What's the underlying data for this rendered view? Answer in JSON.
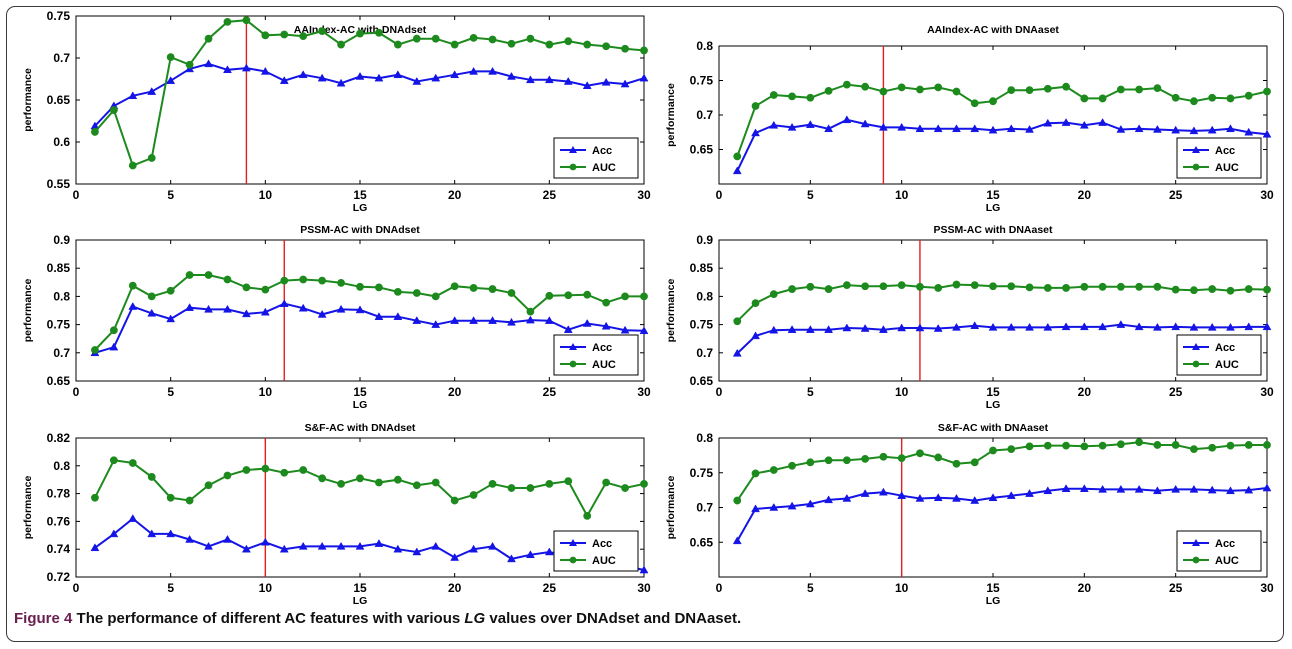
{
  "figure": {
    "caption_label": "Figure 4",
    "caption_pre": "The performance of different AC features with various ",
    "caption_lg": "LG",
    "caption_post": " values over DNAdset and DNAaset."
  },
  "colors": {
    "acc": "#1414e6",
    "auc": "#1d8a1d",
    "marker_line": "#e02020"
  },
  "chart_data": [
    {
      "type": "line",
      "title": "AAIndex-AC with DNAdset",
      "xlabel": "LG",
      "ylabel": "performance",
      "xlim": [
        0,
        30
      ],
      "ylim": [
        0.55,
        0.75
      ],
      "xticks": [
        0,
        5,
        10,
        15,
        20,
        25,
        30
      ],
      "yticks": [
        0.55,
        0.6,
        0.65,
        0.7,
        0.75
      ],
      "ytick_labels": [
        "0.55",
        "0.6",
        "0.65",
        "0.7",
        "0.75"
      ],
      "vline_x": 9,
      "legend_position": "bottom-right",
      "x": [
        1,
        2,
        3,
        4,
        5,
        6,
        7,
        8,
        9,
        10,
        11,
        12,
        13,
        14,
        15,
        16,
        17,
        18,
        19,
        20,
        21,
        22,
        23,
        24,
        25,
        26,
        27,
        28,
        29,
        30
      ],
      "series": [
        {
          "name": "Acc",
          "values": [
            0.619,
            0.643,
            0.655,
            0.66,
            0.673,
            0.687,
            0.693,
            0.686,
            0.688,
            0.684,
            0.673,
            0.68,
            0.676,
            0.67,
            0.678,
            0.676,
            0.68,
            0.672,
            0.676,
            0.68,
            0.684,
            0.684,
            0.678,
            0.674,
            0.674,
            0.672,
            0.667,
            0.671,
            0.669,
            0.676
          ]
        },
        {
          "name": "AUC",
          "values": [
            0.612,
            0.638,
            0.572,
            0.581,
            0.701,
            0.692,
            0.723,
            0.743,
            0.745,
            0.727,
            0.728,
            0.726,
            0.732,
            0.716,
            0.729,
            0.73,
            0.716,
            0.723,
            0.723,
            0.716,
            0.724,
            0.722,
            0.717,
            0.723,
            0.716,
            0.72,
            0.716,
            0.714,
            0.711,
            0.709
          ]
        }
      ]
    },
    {
      "type": "line",
      "title": "AAIndex-AC with DNAaset",
      "xlabel": "LG",
      "ylabel": "performance",
      "xlim": [
        0,
        30
      ],
      "ylim": [
        0.6,
        0.8
      ],
      "xticks": [
        0,
        5,
        10,
        15,
        20,
        25,
        30
      ],
      "yticks": [
        0.65,
        0.7,
        0.75,
        0.8
      ],
      "ytick_labels": [
        "0.65",
        "0.7",
        "0.75",
        "0.8"
      ],
      "vline_x": 9,
      "legend_position": "bottom-right",
      "x": [
        1,
        2,
        3,
        4,
        5,
        6,
        7,
        8,
        9,
        10,
        11,
        12,
        13,
        14,
        15,
        16,
        17,
        18,
        19,
        20,
        21,
        22,
        23,
        24,
        25,
        26,
        27,
        28,
        29,
        30
      ],
      "series": [
        {
          "name": "Acc",
          "values": [
            0.619,
            0.674,
            0.685,
            0.682,
            0.686,
            0.68,
            0.693,
            0.687,
            0.682,
            0.682,
            0.68,
            0.68,
            0.68,
            0.68,
            0.678,
            0.68,
            0.679,
            0.688,
            0.689,
            0.685,
            0.689,
            0.679,
            0.68,
            0.679,
            0.678,
            0.677,
            0.678,
            0.68,
            0.675,
            0.672
          ]
        },
        {
          "name": "AUC",
          "values": [
            0.64,
            0.713,
            0.729,
            0.727,
            0.725,
            0.735,
            0.744,
            0.741,
            0.734,
            0.74,
            0.737,
            0.74,
            0.734,
            0.717,
            0.72,
            0.736,
            0.736,
            0.738,
            0.741,
            0.724,
            0.724,
            0.737,
            0.737,
            0.739,
            0.725,
            0.72,
            0.725,
            0.724,
            0.728,
            0.734
          ]
        }
      ]
    },
    {
      "type": "line",
      "title": "PSSM-AC with DNAdset",
      "xlabel": "LG",
      "ylabel": "performance",
      "xlim": [
        0,
        30
      ],
      "ylim": [
        0.65,
        0.9
      ],
      "xticks": [
        0,
        5,
        10,
        15,
        20,
        25,
        30
      ],
      "yticks": [
        0.65,
        0.7,
        0.75,
        0.8,
        0.85,
        0.9
      ],
      "ytick_labels": [
        "0.65",
        "0.7",
        "0.75",
        "0.8",
        "0.85",
        "0.9"
      ],
      "vline_x": 11,
      "legend_position": "bottom-right",
      "x": [
        1,
        2,
        3,
        4,
        5,
        6,
        7,
        8,
        9,
        10,
        11,
        12,
        13,
        14,
        15,
        16,
        17,
        18,
        19,
        20,
        21,
        22,
        23,
        24,
        25,
        26,
        27,
        28,
        29,
        30
      ],
      "series": [
        {
          "name": "Acc",
          "values": [
            0.7,
            0.71,
            0.782,
            0.77,
            0.76,
            0.78,
            0.777,
            0.777,
            0.769,
            0.772,
            0.787,
            0.779,
            0.768,
            0.777,
            0.776,
            0.764,
            0.764,
            0.757,
            0.75,
            0.757,
            0.757,
            0.757,
            0.754,
            0.758,
            0.757,
            0.741,
            0.752,
            0.747,
            0.74,
            0.739
          ]
        },
        {
          "name": "AUC",
          "values": [
            0.705,
            0.74,
            0.819,
            0.8,
            0.81,
            0.838,
            0.838,
            0.83,
            0.816,
            0.812,
            0.828,
            0.83,
            0.828,
            0.824,
            0.817,
            0.816,
            0.808,
            0.806,
            0.8,
            0.818,
            0.815,
            0.813,
            0.806,
            0.773,
            0.801,
            0.802,
            0.803,
            0.789,
            0.8,
            0.8
          ]
        }
      ]
    },
    {
      "type": "line",
      "title": "PSSM-AC with DNAaset",
      "xlabel": "LG",
      "ylabel": "performance",
      "xlim": [
        0,
        30
      ],
      "ylim": [
        0.65,
        0.9
      ],
      "xticks": [
        0,
        5,
        10,
        15,
        20,
        25,
        30
      ],
      "yticks": [
        0.65,
        0.7,
        0.75,
        0.8,
        0.85,
        0.9
      ],
      "ytick_labels": [
        "0.65",
        "0.7",
        "0.75",
        "0.8",
        "0.85",
        "0.9"
      ],
      "vline_x": 11,
      "legend_position": "bottom-right",
      "x": [
        1,
        2,
        3,
        4,
        5,
        6,
        7,
        8,
        9,
        10,
        11,
        12,
        13,
        14,
        15,
        16,
        17,
        18,
        19,
        20,
        21,
        22,
        23,
        24,
        25,
        26,
        27,
        28,
        29,
        30
      ],
      "series": [
        {
          "name": "Acc",
          "values": [
            0.699,
            0.73,
            0.74,
            0.741,
            0.741,
            0.741,
            0.744,
            0.743,
            0.741,
            0.744,
            0.744,
            0.743,
            0.745,
            0.748,
            0.745,
            0.745,
            0.745,
            0.745,
            0.746,
            0.746,
            0.746,
            0.75,
            0.746,
            0.745,
            0.746,
            0.745,
            0.745,
            0.745,
            0.746,
            0.746
          ]
        },
        {
          "name": "AUC",
          "values": [
            0.756,
            0.788,
            0.804,
            0.813,
            0.817,
            0.813,
            0.82,
            0.818,
            0.818,
            0.82,
            0.817,
            0.815,
            0.821,
            0.82,
            0.818,
            0.818,
            0.816,
            0.815,
            0.815,
            0.817,
            0.817,
            0.817,
            0.817,
            0.817,
            0.812,
            0.811,
            0.813,
            0.81,
            0.813,
            0.812
          ]
        }
      ]
    },
    {
      "type": "line",
      "title": "S&F-AC with DNAdset",
      "xlabel": "LG",
      "ylabel": "performance",
      "xlim": [
        0,
        30
      ],
      "ylim": [
        0.72,
        0.82
      ],
      "xticks": [
        0,
        5,
        10,
        15,
        20,
        25,
        30
      ],
      "yticks": [
        0.72,
        0.74,
        0.76,
        0.78,
        0.8,
        0.82
      ],
      "ytick_labels": [
        "0.72",
        "0.74",
        "0.76",
        "0.78",
        "0.8",
        "0.82"
      ],
      "vline_x": 10,
      "legend_position": "bottom-right",
      "x": [
        1,
        2,
        3,
        4,
        5,
        6,
        7,
        8,
        9,
        10,
        11,
        12,
        13,
        14,
        15,
        16,
        17,
        18,
        19,
        20,
        21,
        22,
        23,
        24,
        25,
        26,
        27,
        28,
        29,
        30
      ],
      "series": [
        {
          "name": "Acc",
          "values": [
            0.741,
            0.751,
            0.762,
            0.751,
            0.751,
            0.747,
            0.742,
            0.747,
            0.74,
            0.745,
            0.74,
            0.742,
            0.742,
            0.742,
            0.742,
            0.744,
            0.74,
            0.738,
            0.742,
            0.734,
            0.74,
            0.742,
            0.733,
            0.736,
            0.738,
            0.735,
            0.735,
            0.734,
            0.728,
            0.725
          ]
        },
        {
          "name": "AUC",
          "values": [
            0.777,
            0.804,
            0.802,
            0.792,
            0.777,
            0.775,
            0.786,
            0.793,
            0.797,
            0.798,
            0.795,
            0.797,
            0.791,
            0.787,
            0.791,
            0.788,
            0.79,
            0.786,
            0.788,
            0.775,
            0.779,
            0.787,
            0.784,
            0.784,
            0.787,
            0.789,
            0.764,
            0.788,
            0.784,
            0.787
          ]
        }
      ]
    },
    {
      "type": "line",
      "title": "S&F-AC with DNAaset",
      "xlabel": "LG",
      "ylabel": "performance",
      "xlim": [
        0,
        30
      ],
      "ylim": [
        0.6,
        0.8
      ],
      "xticks": [
        0,
        5,
        10,
        15,
        20,
        25,
        30
      ],
      "yticks": [
        0.65,
        0.7,
        0.75,
        0.8
      ],
      "ytick_labels": [
        "0.65",
        "0.7",
        "0.75",
        "0.8"
      ],
      "vline_x": 10,
      "legend_position": "bottom-right",
      "x": [
        1,
        2,
        3,
        4,
        5,
        6,
        7,
        8,
        9,
        10,
        11,
        12,
        13,
        14,
        15,
        16,
        17,
        18,
        19,
        20,
        21,
        22,
        23,
        24,
        25,
        26,
        27,
        28,
        29,
        30
      ],
      "series": [
        {
          "name": "Acc",
          "values": [
            0.652,
            0.698,
            0.7,
            0.702,
            0.705,
            0.711,
            0.713,
            0.72,
            0.722,
            0.717,
            0.713,
            0.714,
            0.713,
            0.71,
            0.714,
            0.717,
            0.72,
            0.724,
            0.727,
            0.727,
            0.726,
            0.726,
            0.726,
            0.724,
            0.726,
            0.726,
            0.725,
            0.724,
            0.725,
            0.728
          ]
        },
        {
          "name": "AUC",
          "values": [
            0.71,
            0.749,
            0.754,
            0.76,
            0.765,
            0.768,
            0.768,
            0.77,
            0.773,
            0.771,
            0.778,
            0.772,
            0.763,
            0.765,
            0.782,
            0.784,
            0.788,
            0.789,
            0.789,
            0.788,
            0.789,
            0.791,
            0.794,
            0.79,
            0.79,
            0.784,
            0.786,
            0.789,
            0.79,
            0.79
          ]
        }
      ]
    }
  ]
}
